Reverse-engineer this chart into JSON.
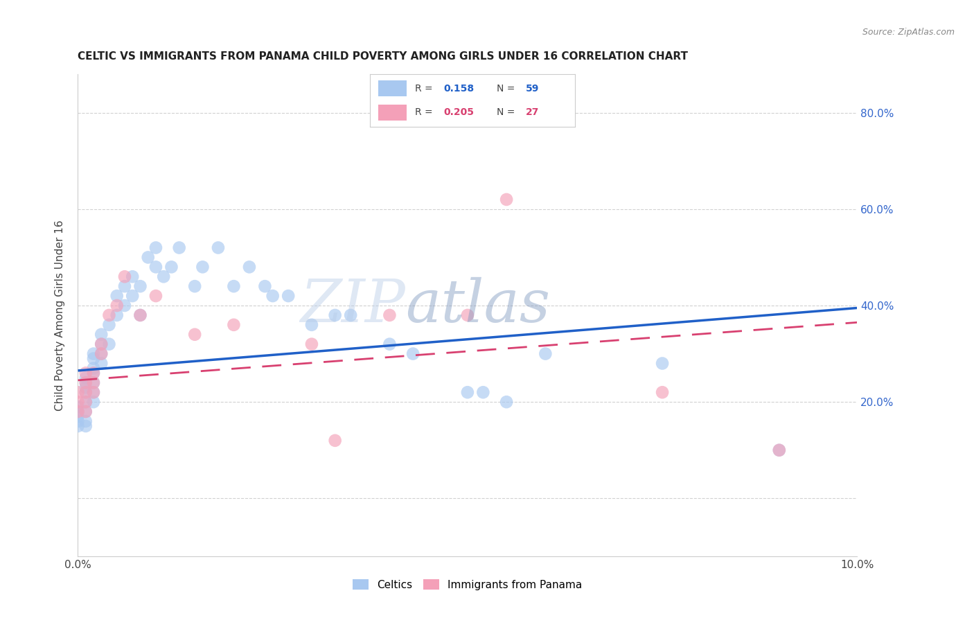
{
  "title": "CELTIC VS IMMIGRANTS FROM PANAMA CHILD POVERTY AMONG GIRLS UNDER 16 CORRELATION CHART",
  "source": "Source: ZipAtlas.com",
  "ylabel": "Child Poverty Among Girls Under 16",
  "xlim": [
    0.0,
    0.1
  ],
  "ylim": [
    -0.12,
    0.88
  ],
  "R_celtics": 0.158,
  "N_celtics": 59,
  "R_panama": 0.205,
  "N_panama": 27,
  "celtics_color": "#a8c8f0",
  "panama_color": "#f4a0b8",
  "trend_celtics_color": "#2060c8",
  "trend_panama_color": "#d84070",
  "watermark_zip": "#b8cce8",
  "watermark_atlas": "#8099c0",
  "grid_color": "#cccccc",
  "background_color": "#ffffff",
  "celtics_x": [
    0.0,
    0.0,
    0.0,
    0.0,
    0.0,
    0.001,
    0.001,
    0.001,
    0.001,
    0.001,
    0.001,
    0.001,
    0.001,
    0.002,
    0.002,
    0.002,
    0.002,
    0.002,
    0.002,
    0.002,
    0.003,
    0.003,
    0.003,
    0.003,
    0.004,
    0.004,
    0.005,
    0.005,
    0.006,
    0.006,
    0.007,
    0.007,
    0.008,
    0.008,
    0.009,
    0.01,
    0.01,
    0.011,
    0.012,
    0.013,
    0.015,
    0.016,
    0.018,
    0.02,
    0.022,
    0.024,
    0.025,
    0.027,
    0.03,
    0.033,
    0.035,
    0.04,
    0.043,
    0.05,
    0.052,
    0.055,
    0.06,
    0.075,
    0.09
  ],
  "celtics_y": [
    0.15,
    0.16,
    0.17,
    0.18,
    0.19,
    0.15,
    0.16,
    0.18,
    0.2,
    0.22,
    0.23,
    0.24,
    0.25,
    0.2,
    0.22,
    0.24,
    0.26,
    0.27,
    0.29,
    0.3,
    0.28,
    0.3,
    0.32,
    0.34,
    0.32,
    0.36,
    0.38,
    0.42,
    0.4,
    0.44,
    0.42,
    0.46,
    0.38,
    0.44,
    0.5,
    0.48,
    0.52,
    0.46,
    0.48,
    0.52,
    0.44,
    0.48,
    0.52,
    0.44,
    0.48,
    0.44,
    0.42,
    0.42,
    0.36,
    0.38,
    0.38,
    0.32,
    0.3,
    0.22,
    0.22,
    0.2,
    0.3,
    0.28,
    0.1
  ],
  "panama_x": [
    0.0,
    0.0,
    0.0,
    0.001,
    0.001,
    0.001,
    0.001,
    0.001,
    0.002,
    0.002,
    0.002,
    0.003,
    0.003,
    0.004,
    0.005,
    0.006,
    0.008,
    0.01,
    0.015,
    0.02,
    0.03,
    0.033,
    0.04,
    0.05,
    0.055,
    0.075,
    0.09
  ],
  "panama_y": [
    0.18,
    0.2,
    0.22,
    0.18,
    0.2,
    0.22,
    0.24,
    0.26,
    0.22,
    0.24,
    0.26,
    0.3,
    0.32,
    0.38,
    0.4,
    0.46,
    0.38,
    0.42,
    0.34,
    0.36,
    0.32,
    0.12,
    0.38,
    0.38,
    0.62,
    0.22,
    0.1
  ],
  "trend_celtic_x0": 0.0,
  "trend_celtic_y0": 0.265,
  "trend_celtic_x1": 0.1,
  "trend_celtic_y1": 0.395,
  "trend_panama_x0": 0.0,
  "trend_panama_y0": 0.245,
  "trend_panama_x1": 0.1,
  "trend_panama_y1": 0.365
}
